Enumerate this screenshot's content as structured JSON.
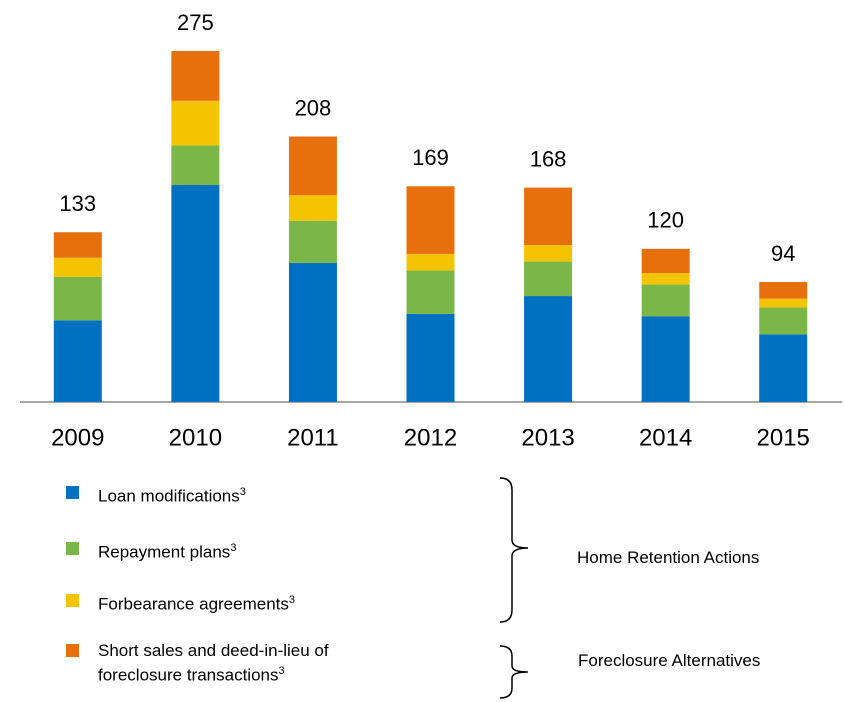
{
  "chart_data": {
    "type": "stacked_bar",
    "categories": [
      "2009",
      "2010",
      "2011",
      "2012",
      "2013",
      "2014",
      "2015"
    ],
    "series": [
      {
        "name": "Loan modifications",
        "footnote": "3",
        "color": "#0070c0",
        "values": [
          64,
          170,
          109,
          69,
          83,
          67,
          53
        ]
      },
      {
        "name": "Repayment plans",
        "footnote": "3",
        "color": "#7ab648",
        "values": [
          34,
          31,
          33,
          34,
          27,
          25,
          21
        ]
      },
      {
        "name": "Forbearance agreements",
        "footnote": "3",
        "color": "#f5c400",
        "values": [
          15,
          35,
          20,
          13,
          13,
          9,
          7
        ]
      },
      {
        "name": "Short sales and deed-in-lieu of foreclosure transactions",
        "footnote": "3",
        "color": "#e8700c",
        "values": [
          20,
          39,
          46,
          53,
          45,
          19,
          13
        ]
      }
    ],
    "totals": [
      133,
      275,
      208,
      169,
      168,
      120,
      94
    ],
    "annotations": [
      "Home Retention Actions",
      "Foreclosure Alternatives"
    ],
    "ylim": [
      0,
      275
    ]
  }
}
